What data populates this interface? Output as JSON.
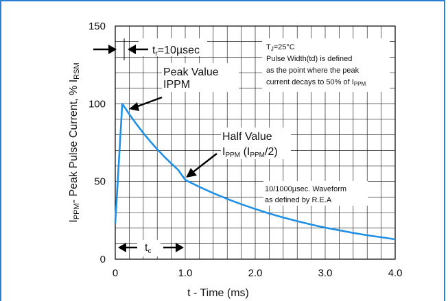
{
  "chart_data": {
    "type": "line",
    "title": "",
    "xlabel": "t - Time (ms)",
    "ylabel": {
      "I_main": "I",
      "sub1": "PPM",
      "text": "- Peak Pulse Current, % I",
      "sub2": "RSM"
    },
    "xlim": [
      0,
      4.0
    ],
    "ylim": [
      0,
      150
    ],
    "x_ticks": [
      "0",
      "1.0",
      "2.0",
      "3.0",
      "4.0"
    ],
    "x_tick_values": [
      0,
      1.0,
      2.0,
      3.0,
      4.0
    ],
    "y_ticks": [
      "0",
      "50",
      "100",
      "150"
    ],
    "y_tick_values": [
      0,
      50,
      100,
      150
    ],
    "grid": true,
    "series": [
      {
        "color": "#1e90e8",
        "points": [
          [
            0,
            23
          ],
          [
            0.1,
            100
          ],
          [
            0.2,
            93.3
          ],
          [
            0.3,
            87.1
          ],
          [
            0.4,
            81.2
          ],
          [
            0.5,
            75.8
          ],
          [
            0.6,
            70.7
          ],
          [
            0.7,
            66
          ],
          [
            0.8,
            61.6
          ],
          [
            0.9,
            57.4
          ],
          [
            1.0,
            51
          ],
          [
            1.2,
            46.6
          ],
          [
            1.4,
            42.5
          ],
          [
            1.6,
            38.8
          ],
          [
            1.8,
            35.4
          ],
          [
            2.0,
            32.3
          ],
          [
            2.2,
            29.4
          ],
          [
            2.4,
            26.8
          ],
          [
            2.6,
            24.5
          ],
          [
            2.8,
            22.3
          ],
          [
            3.0,
            20.3
          ],
          [
            3.2,
            18.6
          ],
          [
            3.4,
            16.9
          ],
          [
            3.6,
            15.4
          ],
          [
            3.8,
            14.1
          ],
          [
            4.0,
            12.8
          ]
        ]
      }
    ],
    "annotations": {
      "tr": {
        "t": "t",
        "sub": "r",
        "rest": "=10µsec"
      },
      "peak": {
        "line1": "Peak Value",
        "line2": "IPPM"
      },
      "half": {
        "line1": "Half Value",
        "i": "I",
        "sub1": "PPM",
        "mid": " (I",
        "sub2": "PPM",
        "end": "/2)"
      },
      "tc": {
        "t": "t",
        "sub": "c"
      },
      "conditions": {
        "line1_t": "T",
        "line1_sub": "J",
        "line1_rest": "=25°C",
        "line2": "Pulse Width(td) is defined",
        "line3": "as the point where the peak",
        "line4_text": "current decays to 50% of I",
        "line4_sub": "PPM"
      },
      "waveform": {
        "line1": "10/1000µsec. Waveform",
        "line2": "as defined by R.E.A"
      }
    }
  }
}
